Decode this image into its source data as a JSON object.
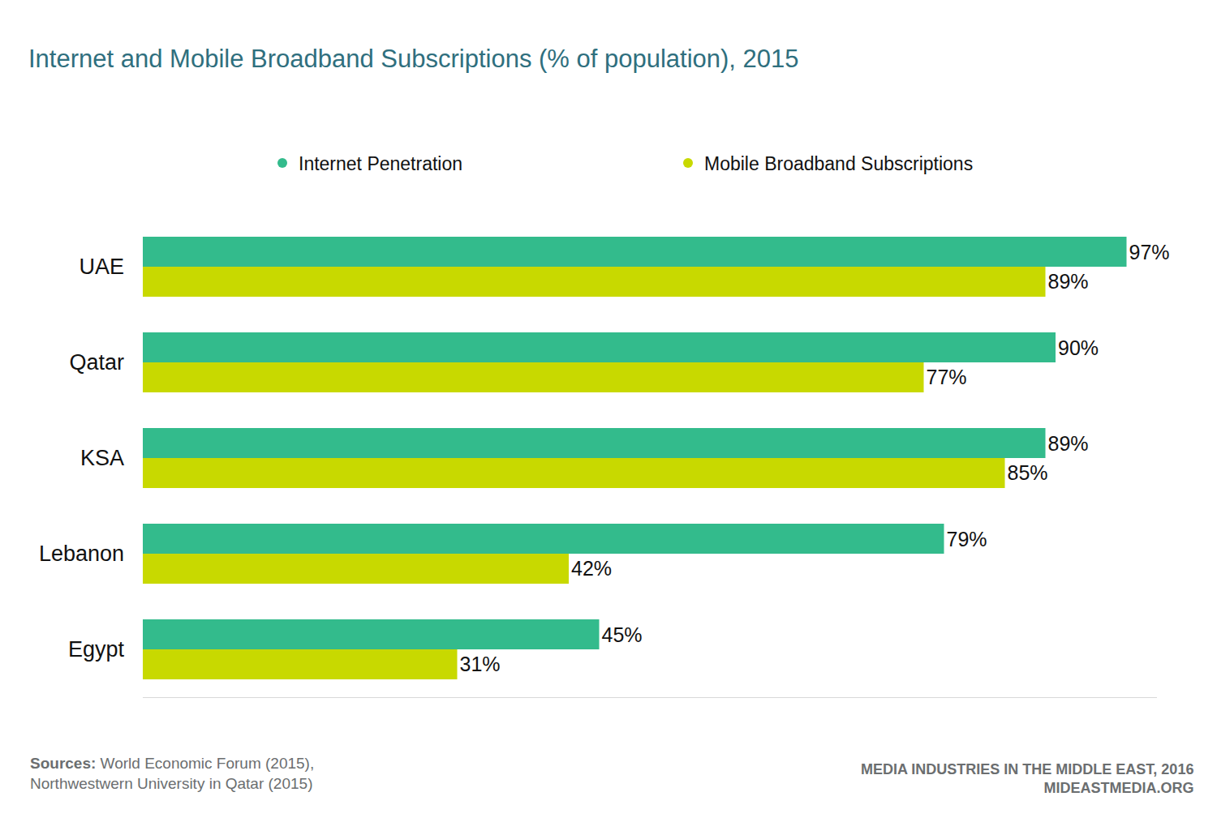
{
  "chart_data": {
    "type": "bar",
    "title": "Internet and Mobile Broadband Subscriptions (% of population), 2015",
    "orientation": "horizontal",
    "categories": [
      "UAE",
      "Qatar",
      "KSA",
      "Lebanon",
      "Egypt"
    ],
    "series": [
      {
        "name": "Internet Penetration",
        "color": "#33bb8c",
        "marker": "circle",
        "values": [
          97,
          90,
          89,
          79,
          45
        ],
        "value_labels": [
          "97%",
          "90%",
          "89%",
          "79%",
          "45%"
        ]
      },
      {
        "name": "Mobile Broadband Subscriptions",
        "color": "#c8d900",
        "marker": "circle",
        "values": [
          89,
          77,
          85,
          42,
          31
        ],
        "value_labels": [
          "89%",
          "77%",
          "85%",
          "42%",
          "31%"
        ]
      }
    ],
    "xlim": [
      0,
      100
    ],
    "grid": false,
    "legend": "top",
    "data_labels": true,
    "tick_labels": "y",
    "source": {
      "label": "Sources:",
      "lines": [
        "World Economic Forum (2015),",
        "Northwestwern University in Qatar (2015)"
      ]
    },
    "footer": [
      "MEDIA INDUSTRIES IN THE MIDDLE EAST, 2016",
      "MIDEASTMEDIA.ORG"
    ]
  }
}
